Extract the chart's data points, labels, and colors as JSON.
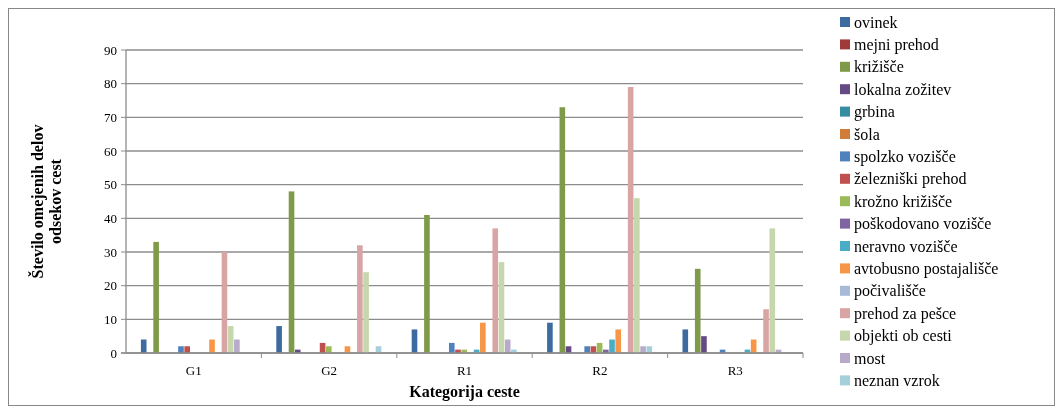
{
  "chart_data": {
    "type": "bar",
    "xlabel": "Kategorija ceste",
    "ylabel": "Število omejenih delov odsekov cest",
    "categories": [
      "G1",
      "G2",
      "R1",
      "R2",
      "R3"
    ],
    "ylim": [
      0,
      90
    ],
    "yticks": [
      0,
      10,
      20,
      30,
      40,
      50,
      60,
      70,
      80,
      90
    ],
    "grid": "y",
    "legend": "right",
    "series": [
      {
        "name": "ovinek",
        "color": "#3d6ba0",
        "values": [
          4,
          8,
          7,
          9,
          7
        ]
      },
      {
        "name": "mejni prehod",
        "color": "#9e3b39",
        "values": [
          0,
          0,
          0,
          0,
          0
        ]
      },
      {
        "name": "križišče",
        "color": "#7f9a48",
        "values": [
          33,
          48,
          41,
          73,
          25
        ]
      },
      {
        "name": "lokalna zožitev",
        "color": "#664a85",
        "values": [
          0,
          1,
          0,
          2,
          5
        ]
      },
      {
        "name": "grbina",
        "color": "#368ca0",
        "values": [
          0,
          0,
          0,
          0,
          0
        ]
      },
      {
        "name": "šola",
        "color": "#d17d3a",
        "values": [
          0,
          0,
          0,
          0,
          0
        ]
      },
      {
        "name": "spolzko vozišče",
        "color": "#4f81bd",
        "values": [
          2,
          0,
          3,
          2,
          1
        ]
      },
      {
        "name": "železniški prehod",
        "color": "#c0504d",
        "values": [
          2,
          3,
          1,
          2,
          0
        ]
      },
      {
        "name": "krožno križišče",
        "color": "#9bbb59",
        "values": [
          0,
          2,
          1,
          3,
          0
        ]
      },
      {
        "name": "poškodovano vozišče",
        "color": "#8064a2",
        "values": [
          0,
          0,
          0,
          1,
          0
        ]
      },
      {
        "name": "neravno vozišče",
        "color": "#4bacc6",
        "values": [
          0,
          0,
          1,
          4,
          1
        ]
      },
      {
        "name": "avtobusno postajališče",
        "color": "#f79646",
        "values": [
          4,
          2,
          9,
          7,
          4
        ]
      },
      {
        "name": "počivališče",
        "color": "#a9b9d8",
        "values": [
          0,
          0,
          0,
          0,
          0
        ]
      },
      {
        "name": "prehod za pešce",
        "color": "#d9a5a4",
        "values": [
          30,
          32,
          37,
          79,
          13
        ]
      },
      {
        "name": "objekti ob cesti",
        "color": "#c6d7ad",
        "values": [
          8,
          24,
          27,
          46,
          37
        ]
      },
      {
        "name": "most",
        "color": "#b7abc9",
        "values": [
          4,
          0,
          4,
          2,
          1
        ]
      },
      {
        "name": "neznan vzrok",
        "color": "#a6cfdc",
        "values": [
          0,
          2,
          1,
          2,
          0
        ]
      }
    ]
  }
}
